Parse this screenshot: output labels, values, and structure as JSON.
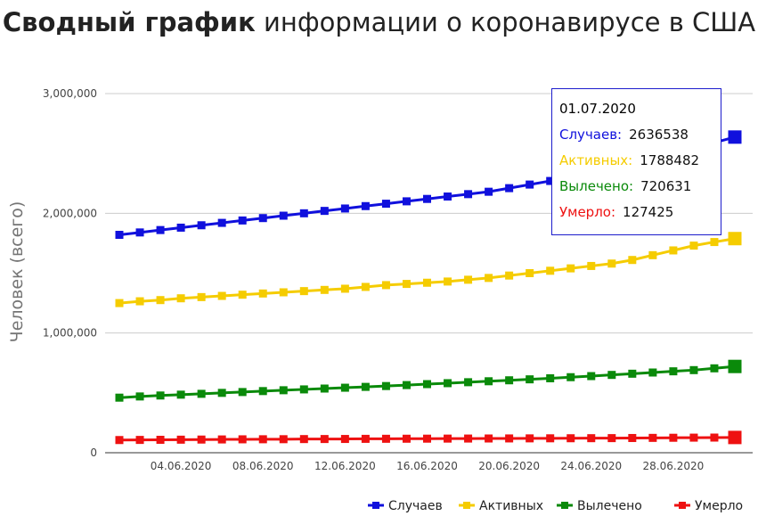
{
  "title": {
    "bold": "Сводный график",
    "rest": " информации о коронавирусе в США"
  },
  "chart_data": {
    "type": "line",
    "ylabel": "Человек (всего)",
    "ylim": [
      0,
      3000000
    ],
    "yticks": [
      "3,000,000",
      "2,000,000",
      "1,000,000",
      "0"
    ],
    "xticks": [
      "04.06.2020",
      "08.06.2020",
      "12.06.2020",
      "16.06.2020",
      "20.06.2020",
      "24.06.2020",
      "28.06.2020"
    ],
    "x": [
      "01.06.2020",
      "02.06.2020",
      "03.06.2020",
      "04.06.2020",
      "05.06.2020",
      "06.06.2020",
      "07.06.2020",
      "08.06.2020",
      "09.06.2020",
      "10.06.2020",
      "11.06.2020",
      "12.06.2020",
      "13.06.2020",
      "14.06.2020",
      "15.06.2020",
      "16.06.2020",
      "17.06.2020",
      "18.06.2020",
      "19.06.2020",
      "20.06.2020",
      "21.06.2020",
      "22.06.2020",
      "23.06.2020",
      "24.06.2020",
      "25.06.2020",
      "26.06.2020",
      "27.06.2020",
      "28.06.2020",
      "29.06.2020",
      "30.06.2020",
      "01.07.2020"
    ],
    "legend_position": "bottom-right",
    "series": [
      {
        "name": "Случаев",
        "color": "#1010dd",
        "values": [
          1820000,
          1840000,
          1860000,
          1880000,
          1900000,
          1920000,
          1940000,
          1960000,
          1980000,
          2000000,
          2020000,
          2040000,
          2060000,
          2080000,
          2100000,
          2120000,
          2140000,
          2160000,
          2180000,
          2210000,
          2240000,
          2270000,
          2300000,
          2330000,
          2370000,
          2410000,
          2450000,
          2500000,
          2550000,
          2590000,
          2636538
        ]
      },
      {
        "name": "Активных",
        "color": "#f5cc00",
        "values": [
          1250000,
          1265000,
          1275000,
          1290000,
          1300000,
          1310000,
          1320000,
          1330000,
          1340000,
          1350000,
          1360000,
          1370000,
          1385000,
          1400000,
          1410000,
          1420000,
          1430000,
          1445000,
          1460000,
          1480000,
          1500000,
          1520000,
          1540000,
          1560000,
          1580000,
          1610000,
          1650000,
          1690000,
          1730000,
          1760000,
          1788482
        ]
      },
      {
        "name": "Вылечено",
        "color": "#0a8a0a",
        "values": [
          460000,
          470000,
          478000,
          485000,
          492000,
          500000,
          507000,
          515000,
          522000,
          529000,
          536000,
          543000,
          550000,
          557000,
          565000,
          573000,
          581000,
          589000,
          597000,
          605000,
          613000,
          622000,
          631000,
          640000,
          650000,
          660000,
          670000,
          680000,
          690000,
          705000,
          720631
        ]
      },
      {
        "name": "Умерло",
        "color": "#ee1111",
        "values": [
          106000,
          107000,
          108000,
          109000,
          110000,
          111000,
          112000,
          112500,
          113000,
          114000,
          114500,
          115000,
          116000,
          116500,
          117000,
          117500,
          118000,
          118500,
          119000,
          119500,
          120000,
          120500,
          121000,
          121500,
          122000,
          123000,
          124000,
          125000,
          126000,
          126500,
          127425
        ]
      }
    ]
  },
  "tooltip": {
    "date": "01.07.2020",
    "rows": [
      {
        "label": "Случаев:",
        "value": "2636538",
        "color": "#1010dd"
      },
      {
        "label": "Активных:",
        "value": "1788482",
        "color": "#f5cc00"
      },
      {
        "label": "Вылечено:",
        "value": "720631",
        "color": "#0a8a0a"
      },
      {
        "label": "Умерло:",
        "value": "127425",
        "color": "#ee1111"
      }
    ]
  }
}
